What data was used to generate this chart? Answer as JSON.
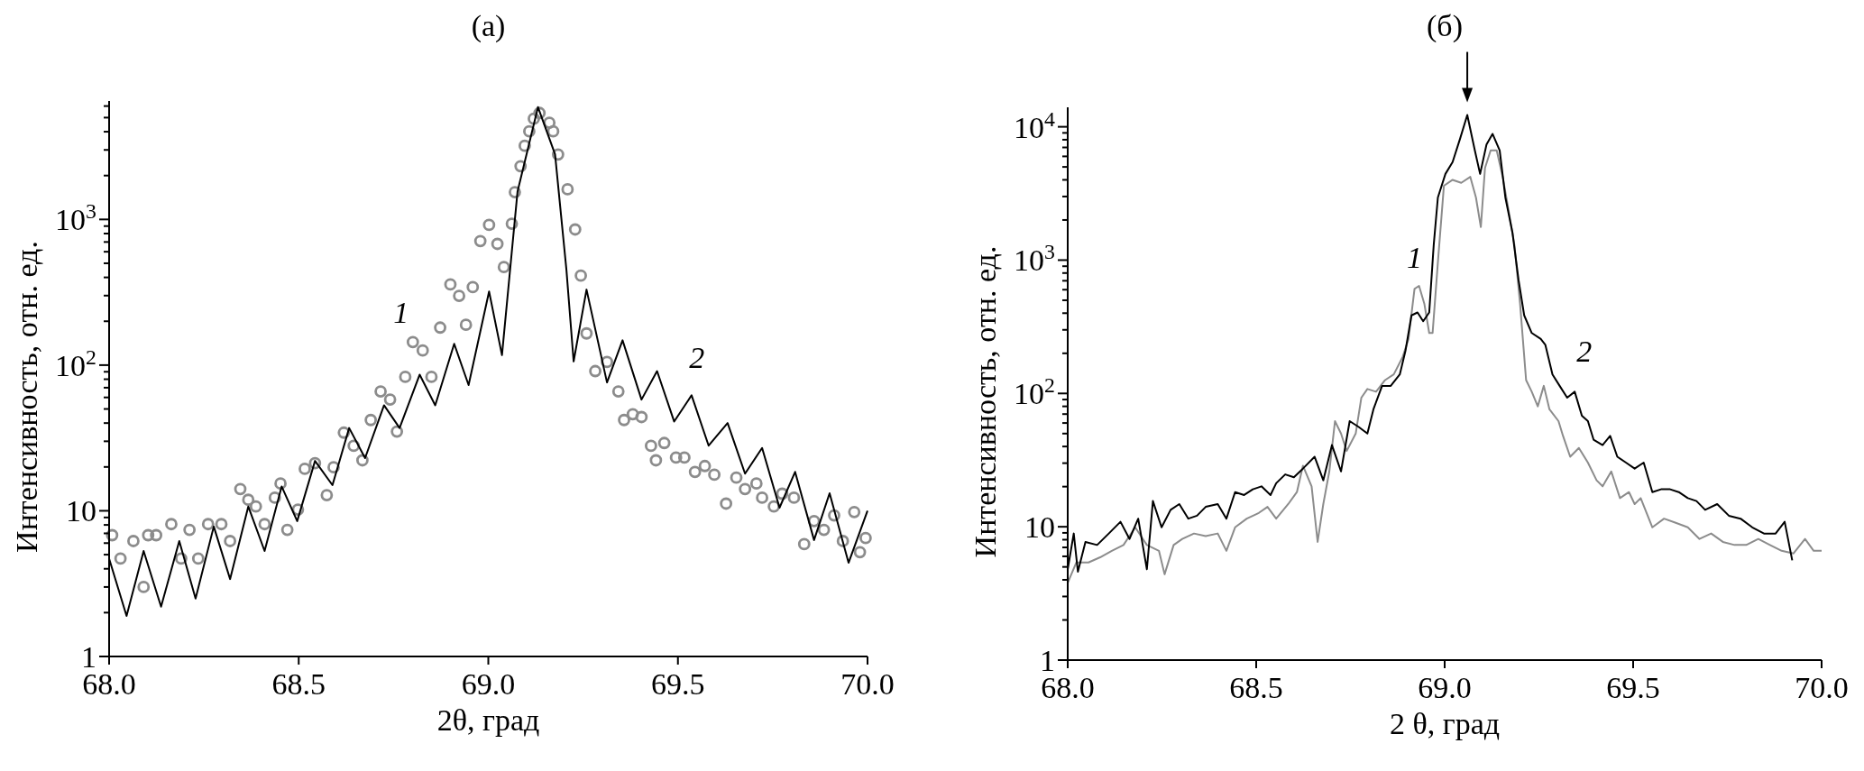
{
  "chart_data": [
    {
      "type": "line",
      "title": "(a)",
      "xlabel": "2θ, град",
      "ylabel": "Интенсивность, отн. ед.",
      "log": "y",
      "xlim": [
        68,
        70
      ],
      "ylim": [
        1,
        6500
      ],
      "xticks": [
        {
          "value": 68,
          "label": "68.0"
        },
        {
          "value": 68.5,
          "label": "68.5"
        },
        {
          "value": 69,
          "label": "69.0"
        },
        {
          "value": 69.5,
          "label": "69.5"
        },
        {
          "value": 70,
          "label": "70.0"
        }
      ],
      "yticks": [
        {
          "value": 1,
          "label": "1"
        },
        {
          "value": 2,
          "label": null
        },
        {
          "value": 3,
          "label": null
        },
        {
          "value": 4,
          "label": null
        },
        {
          "value": 5,
          "label": null
        },
        {
          "value": 6,
          "label": null
        },
        {
          "value": 7,
          "label": null
        },
        {
          "value": 8,
          "label": null
        },
        {
          "value": 9,
          "label": null
        },
        {
          "value": 10,
          "label": "10"
        },
        {
          "value": 20,
          "label": null
        },
        {
          "value": 30,
          "label": null
        },
        {
          "value": 40,
          "label": null
        },
        {
          "value": 50,
          "label": null
        },
        {
          "value": 60,
          "label": null
        },
        {
          "value": 70,
          "label": null
        },
        {
          "value": 80,
          "label": null
        },
        {
          "value": 90,
          "label": null
        },
        {
          "value": 100,
          "label": "10$^{2}$"
        },
        {
          "value": 200,
          "label": null
        },
        {
          "value": 300,
          "label": null
        },
        {
          "value": 400,
          "label": null
        },
        {
          "value": 500,
          "label": null
        },
        {
          "value": 600,
          "label": null
        },
        {
          "value": 700,
          "label": null
        },
        {
          "value": 800,
          "label": null
        },
        {
          "value": 900,
          "label": null
        },
        {
          "value": 1000,
          "label": "10$^{3}$"
        },
        {
          "value": 2000,
          "label": null
        },
        {
          "value": 3000,
          "label": null
        },
        {
          "value": 4000,
          "label": null
        },
        {
          "value": 5000,
          "label": null
        },
        {
          "value": 6000,
          "label": null
        }
      ],
      "series": [
        {
          "name": "1",
          "type": "scatter",
          "marker": "circle",
          "color": "#8c8c8c",
          "x": [
            68.008,
            68.03,
            68.064,
            68.091,
            68.103,
            68.124,
            68.164,
            68.19,
            68.212,
            68.235,
            68.261,
            68.296,
            68.319,
            68.346,
            68.367,
            68.387,
            68.41,
            68.437,
            68.452,
            68.47,
            68.498,
            68.516,
            68.543,
            68.574,
            68.592,
            68.619,
            68.645,
            68.668,
            68.69,
            68.716,
            68.741,
            68.759,
            68.781,
            68.801,
            68.827,
            68.85,
            68.873,
            68.9,
            68.923,
            68.941,
            68.959,
            68.979,
            69.002,
            69.024,
            69.041,
            69.062,
            69.07,
            69.085,
            69.096,
            69.108,
            69.12,
            69.135,
            69.161,
            69.171,
            69.184,
            69.209,
            69.229,
            69.244,
            69.259,
            69.282,
            69.313,
            69.343,
            69.358,
            69.381,
            69.404,
            69.429,
            69.442,
            69.464,
            69.495,
            69.517,
            69.545,
            69.571,
            69.596,
            69.627,
            69.654,
            69.677,
            69.707,
            69.722,
            69.753,
            69.775,
            69.806,
            69.833,
            69.859,
            69.885,
            69.912,
            69.935,
            69.965,
            69.98,
            69.995
          ],
          "values": [
            6.8,
            4.7,
            6.2,
            3.0,
            6.8,
            6.8,
            8.1,
            4.7,
            7.4,
            4.7,
            8.1,
            8.1,
            6.2,
            14.1,
            11.9,
            10.7,
            8.1,
            12.3,
            15.4,
            7.4,
            10.2,
            19.4,
            21.2,
            12.8,
            19.9,
            34.4,
            27.9,
            22.2,
            42,
            66,
            58,
            35,
            83,
            144,
            126,
            83,
            181,
            358,
            299,
            189,
            343,
            710,
            917,
            679,
            471,
            934,
            1540,
            2320,
            3200,
            4020,
            4910,
            5380,
            4610,
            4020,
            2790,
            1610,
            853,
            411,
            165,
            91,
            105,
            66,
            42,
            46,
            44,
            27.9,
            22.2,
            29.2,
            23.2,
            23.2,
            18.5,
            20.3,
            17.7,
            11.2,
            16.9,
            14.1,
            15.4,
            12.3,
            10.7,
            13.1,
            12.3,
            5.9,
            8.5,
            7.4,
            9.3,
            6.2,
            9.8,
            5.2,
            6.5
          ]
        },
        {
          "name": "2",
          "color": "#000000",
          "x": [
            68.0,
            68.046,
            68.091,
            68.137,
            68.185,
            68.228,
            68.276,
            68.319,
            68.367,
            68.41,
            68.455,
            68.496,
            68.543,
            68.589,
            68.633,
            68.675,
            68.725,
            68.766,
            68.819,
            68.86,
            68.91,
            68.948,
            69.002,
            69.036,
            69.077,
            69.131,
            69.176,
            69.206,
            69.225,
            69.259,
            69.313,
            69.354,
            69.404,
            69.445,
            69.49,
            69.536,
            69.581,
            69.631,
            69.677,
            69.722,
            69.768,
            69.809,
            69.859,
            69.9,
            69.95,
            70.0
          ],
          "values": [
            4.7,
            1.9,
            5.3,
            2.2,
            6.2,
            2.5,
            7.8,
            3.4,
            10.7,
            5.3,
            14.7,
            8.5,
            22,
            15,
            37,
            23,
            53,
            37,
            86,
            53,
            140,
            73,
            320,
            117,
            1550,
            5900,
            2800,
            450,
            106,
            330,
            76,
            148,
            58,
            91,
            41,
            62,
            28,
            40,
            18,
            27,
            10.5,
            18.5,
            6.3,
            13.2,
            4.4,
            10
          ]
        }
      ]
    },
    {
      "type": "line",
      "title": "(б)",
      "xlabel": "2 θ, град",
      "ylabel": "Интенсивность, отн. ед.",
      "log": "y",
      "xlim": [
        68,
        70
      ],
      "ylim": [
        1,
        14000
      ],
      "xticks": [
        {
          "value": 68,
          "label": "68.0"
        },
        {
          "value": 68.5,
          "label": "68.5"
        },
        {
          "value": 69,
          "label": "69.0"
        },
        {
          "value": 69.5,
          "label": "69.5"
        },
        {
          "value": 70,
          "label": "70.0"
        }
      ],
      "yticks": [
        {
          "value": 1,
          "label": "1"
        },
        {
          "value": 2,
          "label": null
        },
        {
          "value": 3,
          "label": null
        },
        {
          "value": 4,
          "label": null
        },
        {
          "value": 5,
          "label": null
        },
        {
          "value": 6,
          "label": null
        },
        {
          "value": 7,
          "label": null
        },
        {
          "value": 8,
          "label": null
        },
        {
          "value": 9,
          "label": null
        },
        {
          "value": 10,
          "label": "10"
        },
        {
          "value": 20,
          "label": null
        },
        {
          "value": 30,
          "label": null
        },
        {
          "value": 40,
          "label": null
        },
        {
          "value": 50,
          "label": null
        },
        {
          "value": 60,
          "label": null
        },
        {
          "value": 70,
          "label": null
        },
        {
          "value": 80,
          "label": null
        },
        {
          "value": 90,
          "label": null
        },
        {
          "value": 100,
          "label": "10$^{2}$"
        },
        {
          "value": 200,
          "label": null
        },
        {
          "value": 300,
          "label": null
        },
        {
          "value": 400,
          "label": null
        },
        {
          "value": 500,
          "label": null
        },
        {
          "value": 600,
          "label": null
        },
        {
          "value": 700,
          "label": null
        },
        {
          "value": 800,
          "label": null
        },
        {
          "value": 900,
          "label": null
        },
        {
          "value": 1000,
          "label": "10$^{3}$"
        },
        {
          "value": 2000,
          "label": null
        },
        {
          "value": 3000,
          "label": null
        },
        {
          "value": 4000,
          "label": null
        },
        {
          "value": 5000,
          "label": null
        },
        {
          "value": 6000,
          "label": null
        },
        {
          "value": 7000,
          "label": null
        },
        {
          "value": 8000,
          "label": null
        },
        {
          "value": 9000,
          "label": null
        },
        {
          "value": 10000,
          "label": "10$^{4}$"
        }
      ],
      "series": [
        {
          "name": "1",
          "color": "#8c8c8c",
          "x": [
            68.0,
            68.023,
            68.055,
            68.086,
            68.117,
            68.148,
            68.179,
            68.21,
            68.242,
            68.257,
            68.281,
            68.304,
            68.335,
            68.366,
            68.398,
            68.421,
            68.444,
            68.475,
            68.507,
            68.53,
            68.553,
            68.585,
            68.608,
            68.624,
            68.647,
            68.663,
            68.678,
            68.694,
            68.709,
            68.725,
            68.74,
            68.764,
            68.779,
            68.795,
            68.818,
            68.842,
            68.865,
            68.889,
            68.904,
            68.92,
            68.932,
            68.946,
            68.959,
            68.968,
            68.982,
            68.998,
            69.021,
            69.044,
            69.068,
            69.083,
            69.096,
            69.107,
            69.122,
            69.138,
            69.154,
            69.169,
            69.185,
            69.2,
            69.216,
            69.231,
            69.247,
            69.263,
            69.278,
            69.302,
            69.314,
            69.333,
            69.356,
            69.38,
            69.403,
            69.419,
            69.442,
            69.465,
            69.489,
            69.504,
            69.52,
            69.551,
            69.582,
            69.613,
            69.645,
            69.676,
            69.707,
            69.738,
            69.769,
            69.8,
            69.832,
            69.863,
            69.894,
            69.925,
            69.956,
            69.979,
            70.0
          ],
          "values": [
            3.8,
            5.4,
            5.4,
            5.9,
            6.6,
            7.3,
            9.9,
            7.3,
            6.6,
            4.4,
            7.3,
            8.1,
            8.9,
            8.5,
            8.9,
            6.6,
            9.9,
            11.5,
            12.7,
            14.1,
            11.5,
            14.8,
            18.2,
            28.7,
            20.1,
            7.7,
            14.8,
            26,
            62,
            50,
            37,
            50,
            93,
            108,
            103,
            126,
            139,
            189,
            256,
            609,
            641,
            472,
            284,
            284,
            962,
            3610,
            4000,
            3800,
            4210,
            2950,
            1770,
            4910,
            6650,
            6650,
            4210,
            2410,
            1306,
            472,
            126,
            103,
            80,
            114,
            76,
            62,
            48,
            33.5,
            39,
            30.3,
            22.3,
            20.1,
            26,
            16.4,
            18.2,
            14.8,
            16.4,
            9.9,
            11.5,
            10.7,
            9.9,
            8.1,
            8.9,
            7.7,
            7.3,
            7.3,
            8.1,
            7.3,
            6.6,
            6.3,
            8.1,
            6.6,
            6.6
          ]
        },
        {
          "name": "2",
          "color": "#000000",
          "x": [
            68.0,
            68.016,
            68.027,
            68.047,
            68.078,
            68.109,
            68.14,
            68.164,
            68.187,
            68.21,
            68.226,
            68.249,
            68.273,
            68.296,
            68.32,
            68.343,
            68.366,
            68.398,
            68.421,
            68.444,
            68.468,
            68.491,
            68.514,
            68.538,
            68.553,
            68.577,
            68.6,
            68.624,
            68.655,
            68.678,
            68.701,
            68.725,
            68.748,
            68.772,
            68.795,
            68.811,
            68.834,
            68.857,
            68.881,
            68.896,
            68.912,
            68.928,
            68.943,
            68.959,
            68.971,
            68.982,
            69.002,
            69.021,
            69.041,
            69.06,
            69.08,
            69.094,
            69.111,
            69.127,
            69.146,
            69.161,
            69.18,
            69.196,
            69.211,
            69.231,
            69.255,
            69.267,
            69.286,
            69.305,
            69.325,
            69.345,
            69.364,
            69.38,
            69.395,
            69.419,
            69.439,
            69.458,
            69.481,
            69.504,
            69.528,
            69.551,
            69.574,
            69.598,
            69.621,
            69.645,
            69.668,
            69.691,
            69.723,
            69.754,
            69.785,
            69.816,
            69.847,
            69.878,
            69.902,
            69.922
          ],
          "values": [
            4.8,
            8.9,
            4.6,
            7.7,
            7.3,
            8.9,
            10.9,
            8.1,
            11.5,
            4.8,
            15.6,
            9.9,
            13.4,
            14.8,
            11.5,
            12.1,
            14.1,
            14.8,
            11.5,
            18.2,
            17.3,
            19.1,
            20.1,
            17.3,
            21.2,
            24.7,
            23.5,
            27.3,
            33.5,
            22.3,
            41,
            26,
            62,
            56,
            50,
            76,
            114,
            114,
            139,
            209,
            385,
            405,
            348,
            405,
            1306,
            2950,
            4430,
            5430,
            8160,
            12250,
            6650,
            4430,
            7370,
            8850,
            6650,
            2950,
            1600,
            710,
            385,
            284,
            256,
            232,
            139,
            114,
            93,
            103,
            68,
            62,
            45,
            41,
            48,
            33.5,
            30.3,
            27.3,
            30.3,
            18.2,
            19.1,
            19.1,
            18.2,
            16.4,
            15.6,
            13.4,
            14.8,
            12.1,
            11.5,
            9.9,
            8.9,
            8.9,
            10.9,
            5.6
          ]
        }
      ]
    }
  ]
}
